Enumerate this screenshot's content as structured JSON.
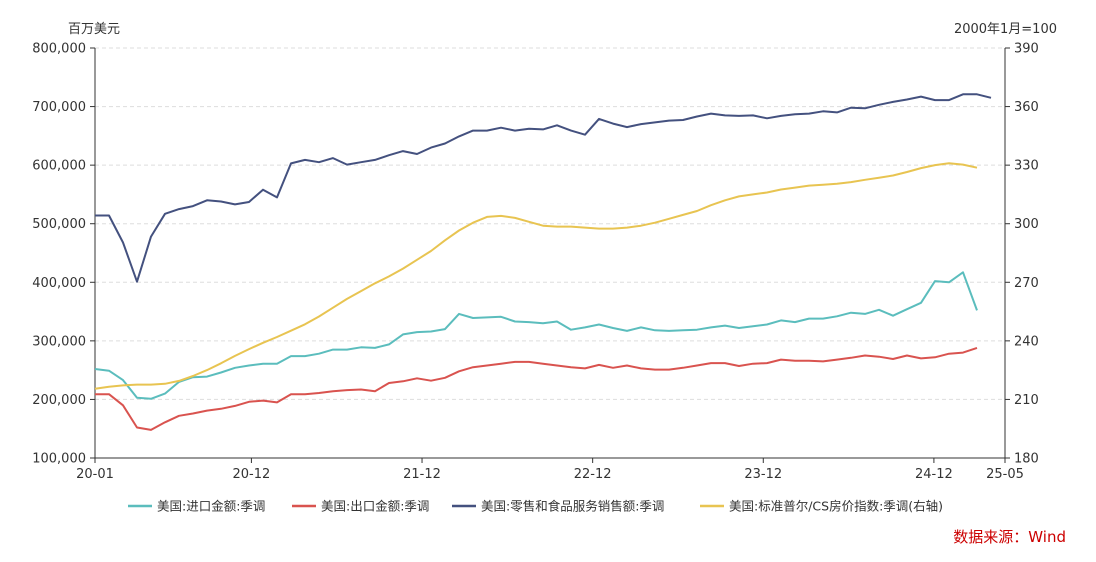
{
  "chart_data": {
    "type": "line",
    "left_unit": "百万美元",
    "right_unit": "2000年1月=100",
    "x_tick_labels": [
      "20-01",
      "20-12",
      "21-12",
      "22-12",
      "23-12",
      "24-12",
      "25-05"
    ],
    "ylim_left": [
      100000,
      800000
    ],
    "yticks_left": [
      "100,000",
      "200,000",
      "300,000",
      "400,000",
      "500,000",
      "600,000",
      "700,000",
      "800,000"
    ],
    "ylim_right": [
      180,
      390
    ],
    "yticks_right": [
      "180",
      "210",
      "240",
      "270",
      "300",
      "330",
      "360",
      "390"
    ],
    "grid": true,
    "legend_position": "bottom",
    "source": "数据来源：Wind",
    "series": [
      {
        "name": "美国:进口金额:季调",
        "axis": "left",
        "color": "#5bbdbd",
        "values": [
          252000,
          249000,
          233000,
          203000,
          201000,
          210000,
          230000,
          238000,
          239000,
          246000,
          254000,
          258000,
          261000,
          261000,
          274000,
          274000,
          278000,
          285000,
          285000,
          289000,
          288000,
          294000,
          311000,
          315000,
          316000,
          320000,
          346000,
          339000,
          340000,
          341000,
          333000,
          332000,
          330000,
          333000,
          319000,
          323000,
          328000,
          322000,
          317000,
          323000,
          318000,
          317000,
          318000,
          319000,
          323000,
          326000,
          322000,
          325000,
          328000,
          335000,
          332000,
          338000,
          338000,
          342000,
          348000,
          346000,
          353000,
          343000,
          354000,
          365000,
          402000,
          400000,
          417000,
          352000
        ]
      },
      {
        "name": "美国:出口金额:季调",
        "axis": "left",
        "color": "#d9534f",
        "values": [
          209000,
          209000,
          190000,
          152000,
          148000,
          161000,
          172000,
          176000,
          181000,
          184000,
          189000,
          196000,
          198000,
          195000,
          209000,
          209000,
          211000,
          214000,
          216000,
          217000,
          214000,
          228000,
          231000,
          236000,
          232000,
          237000,
          248000,
          255000,
          258000,
          261000,
          264000,
          264000,
          261000,
          258000,
          255000,
          253000,
          259000,
          254000,
          258000,
          253000,
          251000,
          251000,
          254000,
          258000,
          262000,
          262000,
          257000,
          261000,
          262000,
          268000,
          266000,
          266000,
          265000,
          268000,
          271000,
          275000,
          273000,
          269000,
          275000,
          270000,
          272000,
          278000,
          280000,
          288000
        ]
      },
      {
        "name": "美国:零售和食品服务销售额:季调",
        "axis": "left",
        "color": "#44517f",
        "values": [
          514000,
          514000,
          468000,
          401000,
          478000,
          517000,
          525000,
          530000,
          540000,
          538000,
          533000,
          537000,
          558000,
          545000,
          603000,
          609000,
          605000,
          612000,
          601000,
          605000,
          609000,
          617000,
          624000,
          619000,
          630000,
          637000,
          649000,
          659000,
          659000,
          664000,
          659000,
          662000,
          661000,
          668000,
          659000,
          652000,
          679000,
          671000,
          665000,
          670000,
          673000,
          676000,
          677000,
          683000,
          688000,
          685000,
          684000,
          685000,
          680000,
          684000,
          687000,
          688000,
          692000,
          690000,
          698000,
          697000,
          703000,
          708000,
          712000,
          717000,
          711000,
          711000,
          721000,
          721000,
          715000
        ]
      },
      {
        "name": "美国:标准普尔/CS房价指数:季调(右轴)",
        "axis": "right",
        "color": "#e8c451",
        "values": [
          215.5,
          216.5,
          217.2,
          217.6,
          217.6,
          218.0,
          219.5,
          222.0,
          225.0,
          228.5,
          232.3,
          235.8,
          239.0,
          242.0,
          245.2,
          248.5,
          252.5,
          257.0,
          261.5,
          265.5,
          269.5,
          273.0,
          277.0,
          281.5,
          286.0,
          291.5,
          296.5,
          300.5,
          303.5,
          304.0,
          303.0,
          301.0,
          299.0,
          298.5,
          298.5,
          298.0,
          297.5,
          297.5,
          298.0,
          299.0,
          300.5,
          302.5,
          304.5,
          306.5,
          309.5,
          312.0,
          314.0,
          315.0,
          316.0,
          317.5,
          318.5,
          319.5,
          320.0,
          320.5,
          321.3,
          322.5,
          323.5,
          324.7,
          326.5,
          328.5,
          330.0,
          331.0,
          330.3,
          328.7
        ]
      }
    ]
  }
}
